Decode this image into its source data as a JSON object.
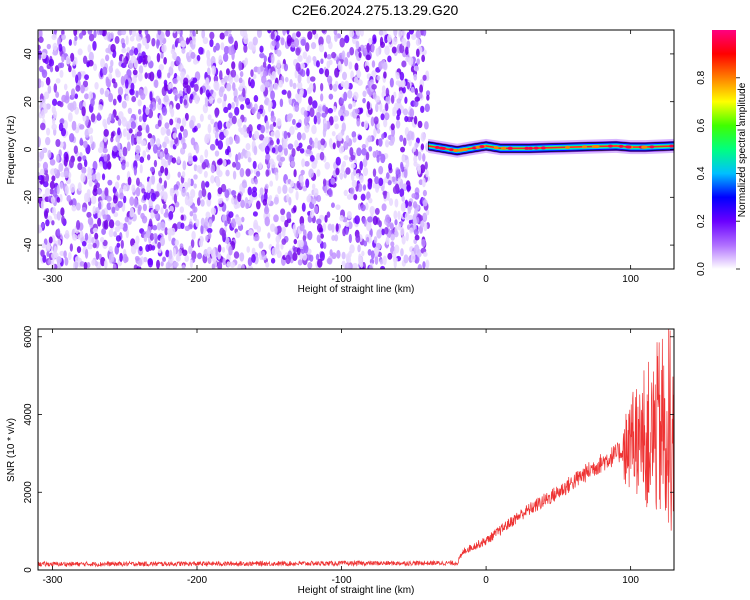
{
  "title": "C2E6.2024.275.13.29.G20",
  "chart_data": [
    {
      "type": "heatmap",
      "xlabel": "Height of straight line (km)",
      "ylabel": "Frequency (Hz)",
      "xlim": [
        -310,
        130
      ],
      "ylim": [
        -50,
        50
      ],
      "x_ticks": [
        -300,
        -200,
        -100,
        0,
        100
      ],
      "y_ticks": [
        -40,
        -20,
        0,
        20,
        40
      ],
      "noise_region_x": [
        -310,
        -40
      ],
      "signal_line": [
        {
          "x": -40,
          "y": 1.5
        },
        {
          "x": -30,
          "y": 0.5
        },
        {
          "x": -20,
          "y": -0.5
        },
        {
          "x": -10,
          "y": 0.5
        },
        {
          "x": 0,
          "y": 1.5
        },
        {
          "x": 10,
          "y": 0.5
        },
        {
          "x": 30,
          "y": 0.5
        },
        {
          "x": 60,
          "y": 1.0
        },
        {
          "x": 90,
          "y": 1.5
        },
        {
          "x": 100,
          "y": 1.0
        },
        {
          "x": 110,
          "y": 1.0
        },
        {
          "x": 130,
          "y": 1.5
        }
      ],
      "colorbar": {
        "label": "Normalized spectral amplitude",
        "range": [
          0,
          1
        ],
        "ticks": [
          "0.0",
          "0.2",
          "0.4",
          "0.6",
          "0.8"
        ],
        "colors": [
          "#ffffff",
          "#b070ff",
          "#6a00ff",
          "#0000ff",
          "#00c0ff",
          "#00ff80",
          "#40ff00",
          "#ffff00",
          "#ff8000",
          "#ff0000",
          "#ff0080"
        ]
      }
    },
    {
      "type": "line",
      "xlabel": "Height of straight line (km)",
      "ylabel": "SNR (10 * v/v)",
      "xlim": [
        -310,
        130
      ],
      "ylim": [
        0,
        6200
      ],
      "x_ticks": [
        -300,
        -200,
        -100,
        0,
        100
      ],
      "y_ticks": [
        0,
        2000,
        4000,
        6000
      ],
      "line_color": "#ee3333",
      "trend": [
        {
          "x": -310,
          "y": 150
        },
        {
          "x": -200,
          "y": 160
        },
        {
          "x": -100,
          "y": 170
        },
        {
          "x": -20,
          "y": 180
        },
        {
          "x": -15,
          "y": 500
        },
        {
          "x": 0,
          "y": 750
        },
        {
          "x": 25,
          "y": 1450
        },
        {
          "x": 50,
          "y": 2000
        },
        {
          "x": 75,
          "y": 2650
        },
        {
          "x": 100,
          "y": 3200
        },
        {
          "x": 110,
          "y": 3400
        },
        {
          "x": 120,
          "y": 3600
        },
        {
          "x": 130,
          "y": 3700
        }
      ]
    }
  ]
}
